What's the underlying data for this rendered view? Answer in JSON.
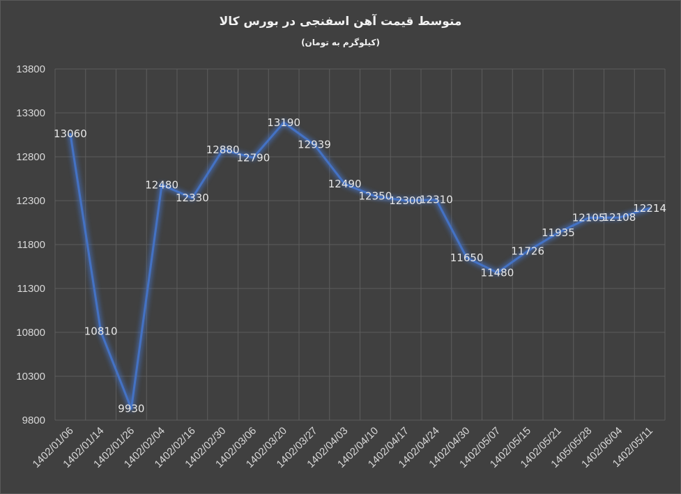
{
  "chart_data": {
    "type": "line",
    "title": "متوسط قیمت آهن اسفنجی در بورس کالا",
    "subtitle": "(کیلوگرم به تومان)",
    "categories": [
      "1402/01/06",
      "1402/01/14",
      "1402/01/26",
      "1402/02/04",
      "1402/02/16",
      "1402/02/30",
      "1402/03/06",
      "1402/03/20",
      "1402/03/27",
      "1402/04/03",
      "1402/04/10",
      "1402/04/17",
      "1402/04/24",
      "1402/04/30",
      "1402/05/07",
      "1402/05/15",
      "1402/05/21",
      "1405/05/28",
      "1402/06/04",
      "1402/05/11"
    ],
    "series": [
      {
        "values": [
          13060,
          10810,
          9930,
          12480,
          12330,
          12880,
          12790,
          13190,
          12939,
          12490,
          12350,
          12300,
          12310,
          11650,
          11480,
          11726,
          11935,
          12105,
          12108,
          12214
        ]
      }
    ],
    "ylim": [
      9800,
      13800
    ],
    "yticks": [
      9800,
      10300,
      10800,
      11300,
      11800,
      12300,
      12800,
      13300,
      13800
    ],
    "grid": true,
    "line_color": "#4472c4"
  }
}
